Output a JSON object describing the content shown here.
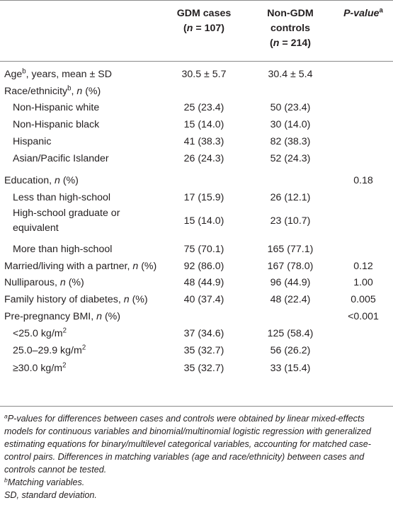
{
  "header": {
    "col1_line1": "GDM cases",
    "col1_line2_pre": "(",
    "col1_n": "n",
    "col1_line2_post": " = 107)",
    "col2_line1": "Non-GDM",
    "col2_line2": "controls",
    "col2_line3_pre": "(",
    "col2_n": "n",
    "col2_line3_post": " = 214)",
    "col3": "P-value",
    "col3_sup": "a"
  },
  "rows": [
    {
      "label": "Age",
      "sup": "b",
      "rest": ", years, mean ± SD",
      "c1": "30.5 ± 5.7",
      "c2": "30.4 ± 5.4",
      "c3": ""
    },
    {
      "label": "Race/ethnicity",
      "sup": "b",
      "rest": ", ",
      "ital": "n",
      "rest2": " (%)",
      "c1": "",
      "c2": "",
      "c3": ""
    },
    {
      "label": "Non-Hispanic white",
      "c1": "25 (23.4)",
      "c2": "50 (23.4)",
      "c3": ""
    },
    {
      "label": "Non-Hispanic black",
      "c1": "15 (14.0)",
      "c2": "30 (14.0)",
      "c3": ""
    },
    {
      "label": "Hispanic",
      "c1": "41 (38.3)",
      "c2": "82 (38.3)",
      "c3": ""
    },
    {
      "label": "Asian/Pacific Islander",
      "c1": "26 (24.3)",
      "c2": "52 (24.3)",
      "c3": ""
    },
    {
      "label": "Education, ",
      "ital": "n",
      "rest2": " (%)",
      "c1": "",
      "c2": "",
      "c3": "0.18"
    },
    {
      "label": "Less than high-school",
      "c1": "17 (15.9)",
      "c2": "26 (12.1)",
      "c3": ""
    },
    {
      "label": "High-school graduate or",
      "label2": "equivalent",
      "c1": "15 (14.0)",
      "c2": "23 (10.7)",
      "c3": ""
    },
    {
      "label": "More than high-school",
      "c1": "75 (70.1)",
      "c2": "165 (77.1)",
      "c3": ""
    },
    {
      "label": "Married/living with a partner, ",
      "ital": "n",
      "rest2": " (%)",
      "c1": "92 (86.0)",
      "c2": "167 (78.0)",
      "c3": "0.12"
    },
    {
      "label": "Nulliparous, ",
      "ital": "n",
      "rest2": " (%)",
      "c1": "48 (44.9)",
      "c2": "96 (44.9)",
      "c3": "1.00"
    },
    {
      "label": "Family history of diabetes, ",
      "ital": "n",
      "rest2": " (%)",
      "c1": "40 (37.4)",
      "c2": "48 (22.4)",
      "c3": "0.005"
    },
    {
      "label": "Pre-pregnancy BMI, ",
      "ital": "n",
      "rest2": " (%)",
      "c1": "",
      "c2": "",
      "c3": "<0.001"
    },
    {
      "label": "<25.0 kg/m",
      "sup": "2",
      "c1": "37 (34.6)",
      "c2": "125 (58.4)",
      "c3": ""
    },
    {
      "label": "25.0–29.9 kg/m",
      "sup": "2",
      "c1": "35 (32.7)",
      "c2": "56 (26.2)",
      "c3": ""
    },
    {
      "label": "≥30.0 kg/m",
      "sup": "2",
      "c1": "35 (32.7)",
      "c2": "33 (15.4)",
      "c3": ""
    }
  ],
  "footnotes": {
    "a_mark": "a",
    "a_text": "P-values for differences between cases and controls were obtained by linear mixed-effects models for continuous variables and binomial/multinomial logistic regression with generalized estimating equations for binary/multilevel categorical variables, accounting for matched case-control pairs. Differences in matching variables (age and race/ethnicity) between cases and controls cannot be tested.",
    "b_mark": "b",
    "b_text": "Matching variables.",
    "sd_text": "SD, standard deviation."
  }
}
